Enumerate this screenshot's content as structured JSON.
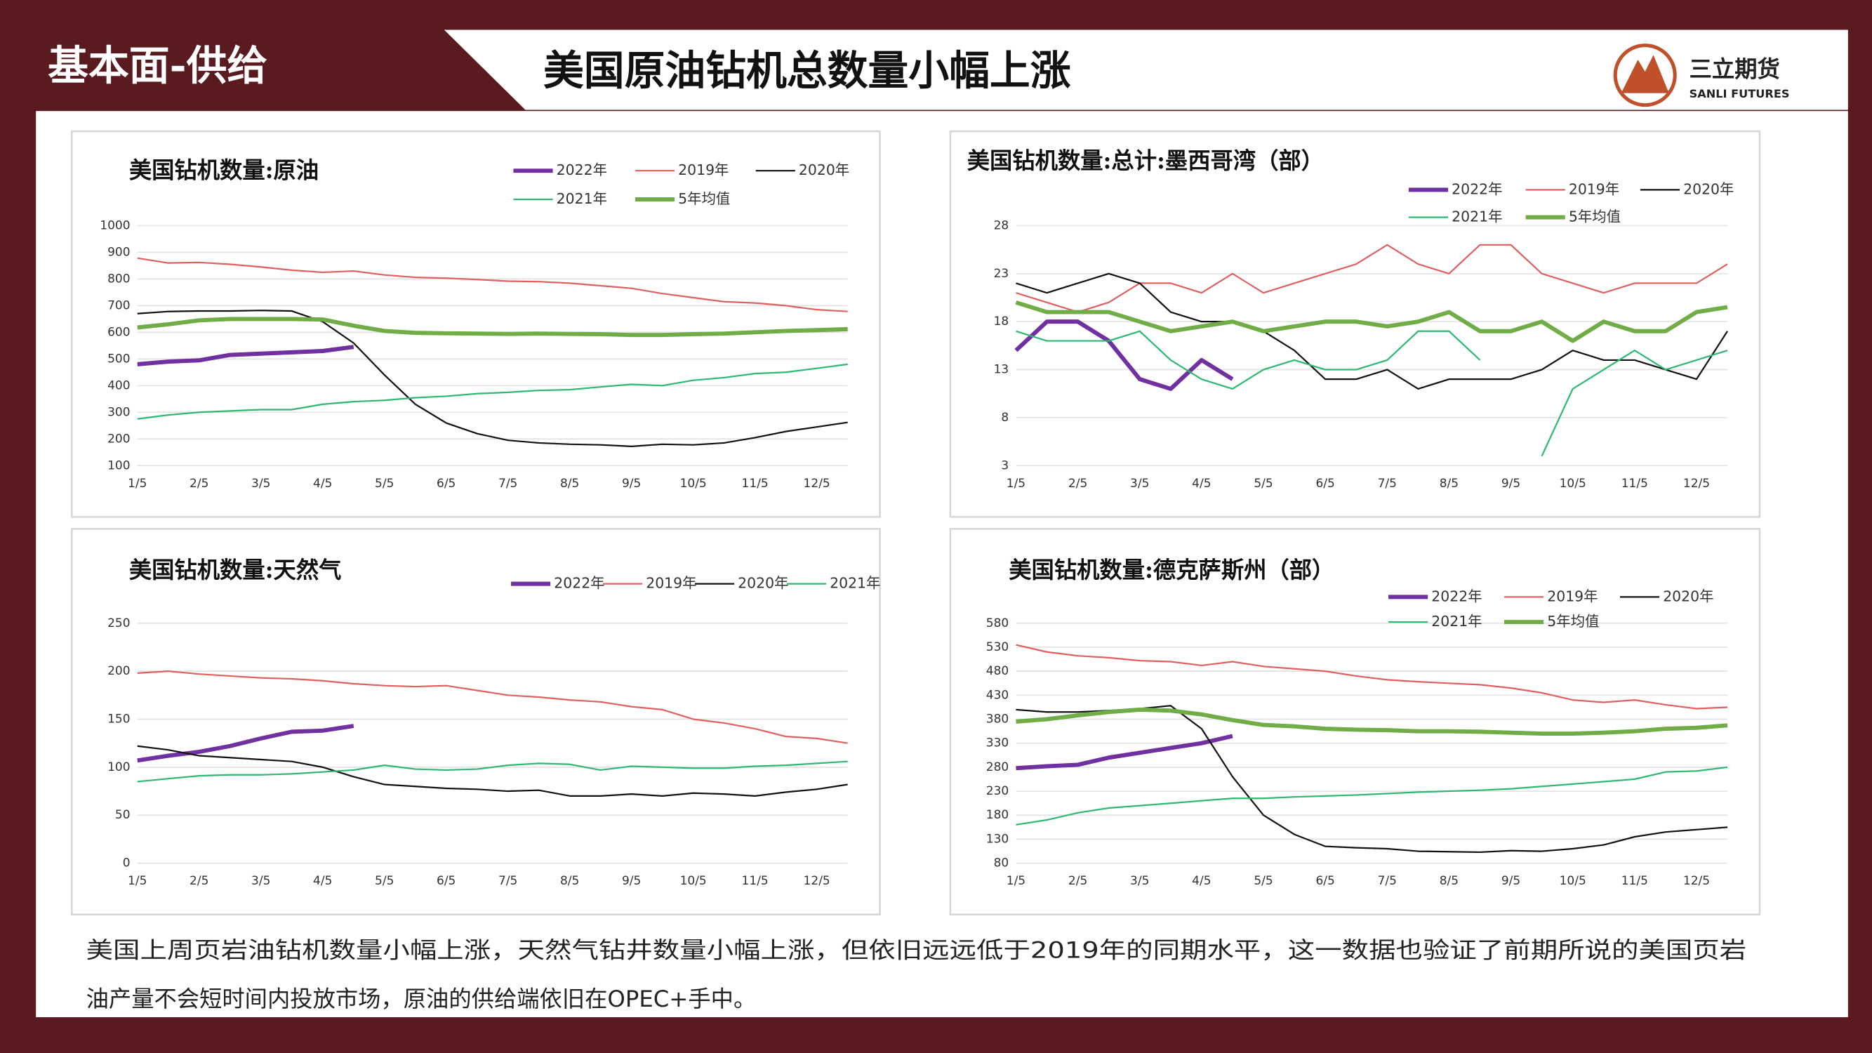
{
  "header": {
    "section": "基本面-供给",
    "title": "美国原油钻机总数量小幅上涨",
    "logo_name": "三立期货",
    "logo_sub": "SANLI FUTURES"
  },
  "body_text": [
    "美国上周页岩油钻机数量小幅上涨，天然气钻井数量小幅上涨，但依旧远远低于2019年的同期水平，这一数据也验证了前期所说的美国页岩",
    "油产量不会短时间内投放市场，原油的供给端依旧在OPEC+手中。"
  ],
  "chart_data": [
    {
      "type": "line",
      "title": "美国钻机数量:原油",
      "grid": true,
      "categories": [
        "1/5",
        null,
        "2/5",
        null,
        "3/5",
        null,
        "4/5",
        null,
        "5/5",
        null,
        "6/5",
        null,
        "7/5",
        null,
        "8/5",
        null,
        "9/5",
        null,
        "10/5",
        null,
        "11/5",
        null,
        "12/5",
        null
      ],
      "ylim": [
        100,
        1000
      ],
      "yticks": [
        100,
        200,
        300,
        400,
        500,
        600,
        700,
        800,
        900,
        1000
      ],
      "series": [
        {
          "name": "2022年",
          "color": "#7030a0",
          "width": 3.5,
          "values": [
            480,
            490,
            495,
            515,
            520,
            525,
            530,
            545,
            null,
            null,
            null,
            null,
            null,
            null,
            null,
            null,
            null,
            null,
            null,
            null,
            null,
            null,
            null,
            null
          ]
        },
        {
          "name": "2019年",
          "color": "#e06060",
          "width": 1.3,
          "values": [
            878,
            860,
            862,
            855,
            845,
            833,
            825,
            830,
            815,
            806,
            803,
            798,
            792,
            790,
            784,
            775,
            765,
            745,
            730,
            715,
            710,
            700,
            685,
            678
          ]
        },
        {
          "name": "2020年",
          "color": "#111111",
          "width": 1.3,
          "values": [
            670,
            678,
            680,
            680,
            682,
            680,
            640,
            560,
            440,
            330,
            260,
            220,
            195,
            185,
            180,
            178,
            172,
            180,
            178,
            185,
            205,
            228,
            245,
            262
          ]
        },
        {
          "name": "2021年",
          "color": "#2eb872",
          "width": 1.3,
          "values": [
            275,
            290,
            300,
            305,
            310,
            310,
            330,
            340,
            345,
            355,
            360,
            370,
            375,
            382,
            385,
            395,
            405,
            400,
            420,
            430,
            445,
            450,
            465,
            480
          ]
        },
        {
          "name": "5年均值",
          "color": "#70ad47",
          "width": 3.5,
          "values": [
            618,
            630,
            645,
            650,
            650,
            650,
            648,
            625,
            605,
            598,
            596,
            595,
            594,
            595,
            594,
            593,
            590,
            590,
            593,
            595,
            600,
            605,
            608,
            612
          ]
        }
      ]
    },
    {
      "type": "line",
      "title": "美国钻机数量:总计:墨西哥湾（部）",
      "grid": true,
      "categories": [
        "1/5",
        null,
        "2/5",
        null,
        "3/5",
        null,
        "4/5",
        null,
        "5/5",
        null,
        "6/5",
        null,
        "7/5",
        null,
        "8/5",
        null,
        "9/5",
        null,
        "10/5",
        null,
        "11/5",
        null,
        "12/5",
        null
      ],
      "ylim": [
        3,
        28
      ],
      "yticks": [
        3,
        8,
        13,
        18,
        23,
        28
      ],
      "series": [
        {
          "name": "2022年",
          "color": "#7030a0",
          "width": 3.5,
          "values": [
            15,
            18,
            18,
            16,
            12,
            11,
            14,
            12,
            null,
            null,
            null,
            null,
            null,
            null,
            null,
            null,
            null,
            null,
            null,
            null,
            null,
            null,
            null,
            null
          ]
        },
        {
          "name": "2019年",
          "color": "#e06060",
          "width": 1.3,
          "values": [
            21,
            20,
            19,
            20,
            22,
            22,
            21,
            23,
            21,
            22,
            23,
            24,
            26,
            24,
            23,
            26,
            26,
            23,
            22,
            21,
            22,
            22,
            22,
            24
          ]
        },
        {
          "name": "2020年",
          "color": "#111111",
          "width": 1.3,
          "values": [
            22,
            21,
            22,
            23,
            22,
            19,
            18,
            18,
            17,
            15,
            12,
            12,
            13,
            11,
            12,
            12,
            12,
            13,
            15,
            14,
            14,
            13,
            12,
            17
          ]
        },
        {
          "name": "2021年",
          "color": "#2eb872",
          "width": 1.3,
          "values": [
            17,
            16,
            16,
            16,
            17,
            14,
            12,
            11,
            13,
            14,
            13,
            13,
            14,
            17,
            17,
            14,
            null,
            4,
            11,
            13,
            15,
            13,
            14,
            15
          ]
        },
        {
          "name": "5年均值",
          "color": "#70ad47",
          "width": 3.5,
          "values": [
            20,
            19,
            19,
            19,
            18,
            17,
            17.5,
            18,
            17,
            17.5,
            18,
            18,
            17.5,
            18,
            19,
            17,
            17,
            18,
            16,
            18,
            17,
            17,
            19,
            19.5
          ]
        }
      ]
    },
    {
      "type": "line",
      "title": "美国钻机数量:天然气",
      "grid": true,
      "categories": [
        "1/5",
        null,
        "2/5",
        null,
        "3/5",
        null,
        "4/5",
        null,
        "5/5",
        null,
        "6/5",
        null,
        "7/5",
        null,
        "8/5",
        null,
        "9/5",
        null,
        "10/5",
        null,
        "11/5",
        null,
        "12/5",
        null
      ],
      "ylim": [
        0,
        250
      ],
      "yticks": [
        0,
        50,
        100,
        150,
        200,
        250
      ],
      "series": [
        {
          "name": "2022年",
          "color": "#7030a0",
          "width": 3.5,
          "values": [
            107,
            112,
            116,
            122,
            130,
            137,
            138,
            143,
            null,
            null,
            null,
            null,
            null,
            null,
            null,
            null,
            null,
            null,
            null,
            null,
            null,
            null,
            null,
            null
          ]
        },
        {
          "name": "2019年",
          "color": "#e06060",
          "width": 1.3,
          "values": [
            198,
            200,
            197,
            195,
            193,
            192,
            190,
            187,
            185,
            184,
            185,
            180,
            175,
            173,
            170,
            168,
            163,
            160,
            150,
            146,
            140,
            132,
            130,
            125
          ]
        },
        {
          "name": "2020年",
          "color": "#111111",
          "width": 1.3,
          "values": [
            122,
            118,
            112,
            110,
            108,
            106,
            100,
            90,
            82,
            80,
            78,
            77,
            75,
            76,
            70,
            70,
            72,
            70,
            73,
            72,
            70,
            74,
            77,
            82
          ]
        },
        {
          "name": "2021年",
          "color": "#2eb872",
          "width": 1.3,
          "values": [
            85,
            88,
            91,
            92,
            92,
            93,
            95,
            97,
            102,
            98,
            97,
            98,
            102,
            104,
            103,
            97,
            101,
            100,
            99,
            99,
            101,
            102,
            104,
            106
          ]
        }
      ]
    },
    {
      "type": "line",
      "title": "美国钻机数量:德克萨斯州（部）",
      "grid": true,
      "categories": [
        "1/5",
        null,
        "2/5",
        null,
        "3/5",
        null,
        "4/5",
        null,
        "5/5",
        null,
        "6/5",
        null,
        "7/5",
        null,
        "8/5",
        null,
        "9/5",
        null,
        "10/5",
        null,
        "11/5",
        null,
        "12/5",
        null
      ],
      "ylim": [
        80,
        580
      ],
      "yticks": [
        80,
        130,
        180,
        230,
        280,
        330,
        380,
        430,
        480,
        530,
        580
      ],
      "series": [
        {
          "name": "2022年",
          "color": "#7030a0",
          "width": 3.5,
          "values": [
            278,
            282,
            285,
            300,
            310,
            320,
            330,
            345,
            null,
            null,
            null,
            null,
            null,
            null,
            null,
            null,
            null,
            null,
            null,
            null,
            null,
            null,
            null,
            null
          ]
        },
        {
          "name": "2019年",
          "color": "#e06060",
          "width": 1.3,
          "values": [
            535,
            520,
            512,
            508,
            502,
            500,
            492,
            500,
            490,
            485,
            480,
            470,
            462,
            458,
            455,
            452,
            445,
            435,
            420,
            415,
            420,
            410,
            402,
            405
          ]
        },
        {
          "name": "2020年",
          "color": "#111111",
          "width": 1.3,
          "values": [
            400,
            395,
            395,
            398,
            402,
            408,
            360,
            260,
            180,
            140,
            115,
            112,
            110,
            105,
            104,
            103,
            106,
            105,
            110,
            118,
            135,
            145,
            150,
            155
          ]
        },
        {
          "name": "2021年",
          "color": "#2eb872",
          "width": 1.3,
          "values": [
            160,
            170,
            185,
            195,
            200,
            205,
            210,
            215,
            215,
            218,
            220,
            222,
            225,
            228,
            230,
            232,
            235,
            240,
            245,
            250,
            255,
            270,
            272,
            280
          ]
        },
        {
          "name": "5年均值",
          "color": "#70ad47",
          "width": 3.5,
          "values": [
            375,
            380,
            388,
            395,
            400,
            398,
            390,
            378,
            368,
            365,
            360,
            358,
            357,
            355,
            355,
            354,
            352,
            350,
            350,
            352,
            355,
            360,
            362,
            367
          ]
        }
      ]
    }
  ]
}
